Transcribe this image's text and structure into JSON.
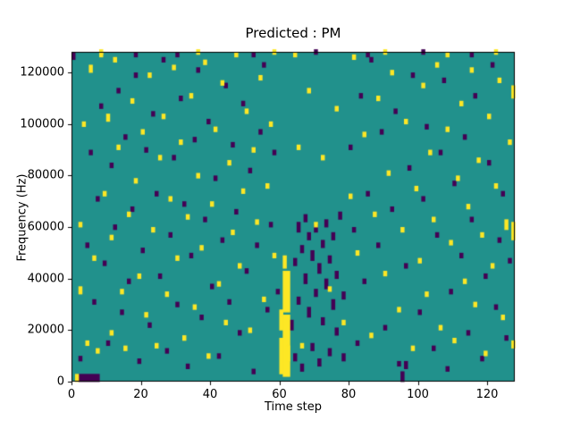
{
  "chart_data": {
    "type": "heatmap",
    "title": "Predicted : PM",
    "xlabel": "Time step",
    "ylabel": "Frequency (Hz)",
    "xlim": [
      0,
      128
    ],
    "ylim": [
      0,
      128000
    ],
    "grid": false,
    "legend": "none",
    "xticks": [
      0,
      20,
      40,
      60,
      80,
      100,
      120
    ],
    "xtick_labels": [
      "0",
      "20",
      "40",
      "60",
      "80",
      "100",
      "120"
    ],
    "yticks": [
      0,
      20000,
      40000,
      60000,
      80000,
      100000,
      120000
    ],
    "ytick_labels": [
      "0",
      "20000",
      "40000",
      "60000",
      "80000",
      "100000",
      "120000"
    ],
    "colors": {
      "background": "#21918c",
      "yellow_class": "#fde725",
      "purple_class": "#440154",
      "frame": "#000000"
    },
    "cell_grid": [
      128,
      128
    ],
    "freq_cell_unit_hz": 1000,
    "cells_yellow": [
      [
        1,
        0,
        3
      ],
      [
        2,
        34,
        3
      ],
      [
        2,
        60,
        2
      ],
      [
        3,
        99,
        2
      ],
      [
        4,
        14,
        2
      ],
      [
        5,
        120,
        3
      ],
      [
        6,
        47,
        2
      ],
      [
        7,
        11,
        2
      ],
      [
        8,
        126,
        2
      ],
      [
        9,
        72,
        2
      ],
      [
        10,
        101,
        3
      ],
      [
        11,
        18,
        2
      ],
      [
        11,
        55,
        2
      ],
      [
        12,
        124,
        2
      ],
      [
        13,
        90,
        2
      ],
      [
        14,
        34,
        2
      ],
      [
        15,
        12,
        2
      ],
      [
        16,
        64,
        2
      ],
      [
        17,
        108,
        2
      ],
      [
        18,
        77,
        2
      ],
      [
        19,
        40,
        2
      ],
      [
        20,
        96,
        2
      ],
      [
        21,
        25,
        2
      ],
      [
        22,
        118,
        2
      ],
      [
        23,
        58,
        2
      ],
      [
        24,
        13,
        2
      ],
      [
        25,
        86,
        2
      ],
      [
        26,
        102,
        2
      ],
      [
        27,
        33,
        2
      ],
      [
        28,
        70,
        2
      ],
      [
        29,
        121,
        2
      ],
      [
        30,
        47,
        2
      ],
      [
        31,
        92,
        2
      ],
      [
        32,
        16,
        2
      ],
      [
        33,
        63,
        2
      ],
      [
        34,
        110,
        2
      ],
      [
        35,
        28,
        2
      ],
      [
        36,
        79,
        2
      ],
      [
        36,
        127,
        2
      ],
      [
        37,
        51,
        2
      ],
      [
        38,
        123,
        2
      ],
      [
        39,
        9,
        2
      ],
      [
        40,
        68,
        2
      ],
      [
        41,
        97,
        2
      ],
      [
        42,
        37,
        2
      ],
      [
        43,
        115,
        2
      ],
      [
        44,
        22,
        2
      ],
      [
        45,
        84,
        2
      ],
      [
        46,
        57,
        2
      ],
      [
        47,
        126,
        2
      ],
      [
        48,
        44,
        2
      ],
      [
        49,
        73,
        2
      ],
      [
        50,
        104,
        2
      ],
      [
        51,
        19,
        2
      ],
      [
        52,
        89,
        2
      ],
      [
        53,
        61,
        2
      ],
      [
        54,
        117,
        2
      ],
      [
        55,
        31,
        2
      ],
      [
        56,
        75,
        2
      ],
      [
        57,
        99,
        2
      ],
      [
        58,
        48,
        2
      ],
      [
        58,
        127,
        2
      ],
      [
        60,
        3,
        14,
        1
      ],
      [
        61,
        2,
        24,
        2
      ],
      [
        61,
        27,
        16,
        2
      ],
      [
        61,
        44,
        5,
        1
      ],
      [
        60,
        20,
        8,
        1
      ],
      [
        62,
        8,
        6,
        1
      ],
      [
        64,
        126,
        2
      ],
      [
        65,
        90,
        2
      ],
      [
        66,
        13,
        2
      ],
      [
        68,
        112,
        2
      ],
      [
        70,
        60,
        2
      ],
      [
        72,
        86,
        2
      ],
      [
        74,
        35,
        2
      ],
      [
        76,
        105,
        2
      ],
      [
        78,
        22,
        2
      ],
      [
        80,
        71,
        2
      ],
      [
        81,
        125,
        2
      ],
      [
        82,
        49,
        2
      ],
      [
        84,
        95,
        2
      ],
      [
        86,
        17,
        2
      ],
      [
        87,
        64,
        2
      ],
      [
        88,
        109,
        2
      ],
      [
        90,
        41,
        2
      ],
      [
        90,
        127,
        2
      ],
      [
        91,
        80,
        2
      ],
      [
        92,
        119,
        2
      ],
      [
        94,
        27,
        2
      ],
      [
        95,
        58,
        2
      ],
      [
        96,
        100,
        2
      ],
      [
        98,
        12,
        2
      ],
      [
        99,
        74,
        2
      ],
      [
        100,
        46,
        2
      ],
      [
        101,
        114,
        2
      ],
      [
        102,
        33,
        2
      ],
      [
        103,
        88,
        2
      ],
      [
        104,
        62,
        2
      ],
      [
        105,
        122,
        2
      ],
      [
        106,
        20,
        2
      ],
      [
        108,
        97,
        2
      ],
      [
        108,
        126,
        2
      ],
      [
        109,
        53,
        2
      ],
      [
        110,
        15,
        2
      ],
      [
        111,
        78,
        2
      ],
      [
        112,
        107,
        2
      ],
      [
        113,
        38,
        2
      ],
      [
        114,
        67,
        2
      ],
      [
        115,
        120,
        2
      ],
      [
        116,
        29,
        2
      ],
      [
        117,
        85,
        2
      ],
      [
        118,
        56,
        2
      ],
      [
        119,
        10,
        2
      ],
      [
        120,
        102,
        2
      ],
      [
        121,
        44,
        2
      ],
      [
        122,
        75,
        2
      ],
      [
        122,
        127,
        2
      ],
      [
        123,
        116,
        2
      ],
      [
        124,
        24,
        2
      ],
      [
        125,
        59,
        4
      ],
      [
        126,
        92,
        2
      ],
      [
        127,
        13,
        3
      ],
      [
        127,
        55,
        7
      ],
      [
        127,
        110,
        5
      ],
      [
        8,
        127,
        2
      ]
    ],
    "cells_purple": [
      [
        0,
        125,
        3
      ],
      [
        2,
        0,
        3,
        6
      ],
      [
        2,
        8,
        2
      ],
      [
        4,
        52,
        2
      ],
      [
        5,
        88,
        2
      ],
      [
        6,
        30,
        2
      ],
      [
        7,
        70,
        2
      ],
      [
        8,
        106,
        2
      ],
      [
        9,
        45,
        2
      ],
      [
        10,
        14,
        2
      ],
      [
        11,
        83,
        2
      ],
      [
        12,
        59,
        2
      ],
      [
        13,
        112,
        2
      ],
      [
        14,
        26,
        2
      ],
      [
        15,
        94,
        2
      ],
      [
        16,
        38,
        2
      ],
      [
        17,
        66,
        2
      ],
      [
        18,
        118,
        2
      ],
      [
        18,
        126,
        2
      ],
      [
        19,
        7,
        2
      ],
      [
        20,
        50,
        2
      ],
      [
        21,
        89,
        2
      ],
      [
        22,
        21,
        2
      ],
      [
        23,
        103,
        2
      ],
      [
        24,
        72,
        2
      ],
      [
        25,
        40,
        2
      ],
      [
        26,
        124,
        2
      ],
      [
        27,
        11,
        2
      ],
      [
        28,
        56,
        2
      ],
      [
        29,
        86,
        2
      ],
      [
        30,
        29,
        2
      ],
      [
        30,
        126,
        2
      ],
      [
        31,
        109,
        2
      ],
      [
        32,
        68,
        2
      ],
      [
        33,
        5,
        2
      ],
      [
        34,
        48,
        2
      ],
      [
        35,
        93,
        2
      ],
      [
        36,
        120,
        2
      ],
      [
        37,
        24,
        2
      ],
      [
        38,
        62,
        2
      ],
      [
        39,
        100,
        2
      ],
      [
        40,
        36,
        2
      ],
      [
        41,
        78,
        2
      ],
      [
        42,
        9,
        2
      ],
      [
        43,
        54,
        2
      ],
      [
        44,
        114,
        2
      ],
      [
        45,
        30,
        2
      ],
      [
        46,
        91,
        2
      ],
      [
        47,
        65,
        2
      ],
      [
        48,
        18,
        2
      ],
      [
        49,
        107,
        2
      ],
      [
        50,
        42,
        2
      ],
      [
        51,
        81,
        2
      ],
      [
        52,
        3,
        2
      ],
      [
        52,
        126,
        2
      ],
      [
        53,
        52,
        2
      ],
      [
        54,
        96,
        2
      ],
      [
        55,
        122,
        2
      ],
      [
        56,
        27,
        2
      ],
      [
        57,
        60,
        2
      ],
      [
        58,
        88,
        2
      ],
      [
        59,
        34,
        2
      ],
      [
        63,
        20,
        4
      ],
      [
        64,
        45,
        3
      ],
      [
        64,
        8,
        3
      ],
      [
        65,
        58,
        4
      ],
      [
        65,
        30,
        3
      ],
      [
        66,
        50,
        3
      ],
      [
        66,
        4,
        3
      ],
      [
        67,
        38,
        4
      ],
      [
        67,
        62,
        3
      ],
      [
        68,
        25,
        4
      ],
      [
        68,
        55,
        3
      ],
      [
        69,
        12,
        3
      ],
      [
        69,
        47,
        4
      ],
      [
        70,
        33,
        3
      ],
      [
        70,
        58,
        3
      ],
      [
        70,
        127,
        2
      ],
      [
        71,
        6,
        3
      ],
      [
        71,
        42,
        4
      ],
      [
        72,
        22,
        3
      ],
      [
        72,
        52,
        3
      ],
      [
        73,
        36,
        4
      ],
      [
        73,
        60,
        3
      ],
      [
        74,
        10,
        3
      ],
      [
        74,
        46,
        3
      ],
      [
        75,
        28,
        4
      ],
      [
        75,
        55,
        3
      ],
      [
        76,
        18,
        3
      ],
      [
        76,
        40,
        3
      ],
      [
        77,
        63,
        3
      ],
      [
        78,
        32,
        3
      ],
      [
        78,
        8,
        3
      ],
      [
        80,
        90,
        2
      ],
      [
        81,
        58,
        2
      ],
      [
        82,
        14,
        2
      ],
      [
        83,
        110,
        2
      ],
      [
        84,
        38,
        2
      ],
      [
        85,
        72,
        2
      ],
      [
        85,
        126,
        2
      ],
      [
        86,
        124,
        2
      ],
      [
        88,
        52,
        2
      ],
      [
        89,
        96,
        2
      ],
      [
        90,
        20,
        2
      ],
      [
        92,
        66,
        2
      ],
      [
        93,
        104,
        2
      ],
      [
        94,
        6,
        2
      ],
      [
        95,
        0,
        4
      ],
      [
        96,
        5,
        3
      ],
      [
        96,
        44,
        2
      ],
      [
        97,
        82,
        2
      ],
      [
        98,
        118,
        2
      ],
      [
        100,
        26,
        2
      ],
      [
        101,
        70,
        2
      ],
      [
        101,
        127,
        2
      ],
      [
        102,
        98,
        2
      ],
      [
        104,
        12,
        2
      ],
      [
        105,
        56,
        2
      ],
      [
        106,
        88,
        2
      ],
      [
        107,
        116,
        2
      ],
      [
        108,
        4,
        2
      ],
      [
        109,
        34,
        2
      ],
      [
        110,
        76,
        2
      ],
      [
        112,
        48,
        2
      ],
      [
        113,
        94,
        2
      ],
      [
        114,
        18,
        2
      ],
      [
        115,
        62,
        2
      ],
      [
        115,
        126,
        2
      ],
      [
        116,
        110,
        2
      ],
      [
        118,
        8,
        2
      ],
      [
        119,
        40,
        2
      ],
      [
        120,
        84,
        2
      ],
      [
        121,
        122,
        2
      ],
      [
        122,
        28,
        2
      ],
      [
        123,
        54,
        2
      ],
      [
        124,
        72,
        2
      ],
      [
        125,
        16,
        2
      ],
      [
        126,
        46,
        2
      ]
    ]
  }
}
